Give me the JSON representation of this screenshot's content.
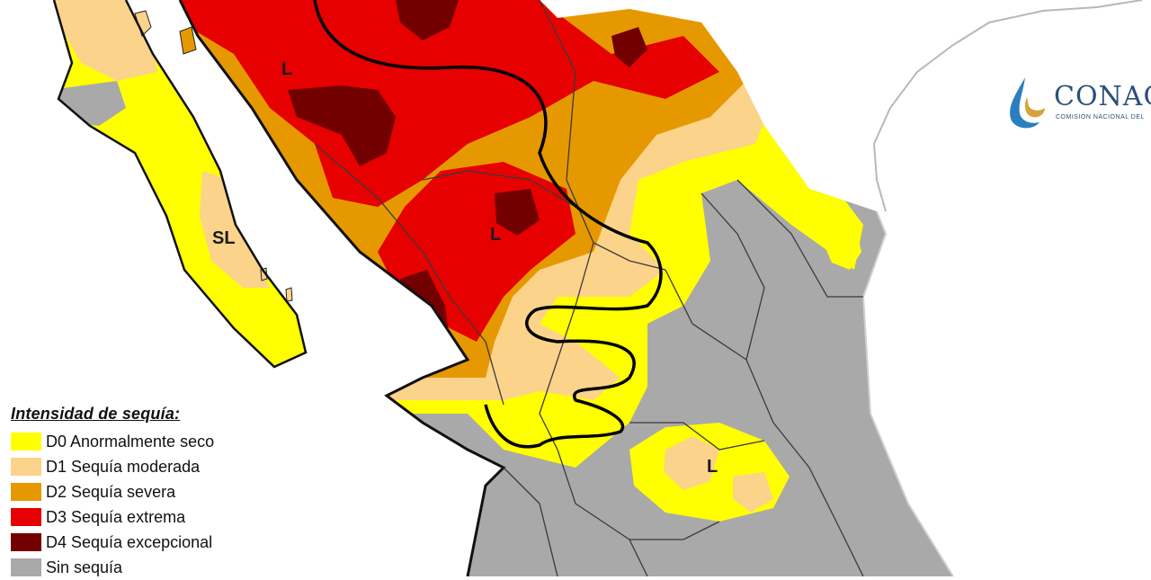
{
  "map": {
    "region_labels": {
      "baja_sur": "SL",
      "sonora_north": "L",
      "chihuahua_central": "L",
      "bajio": "L"
    }
  },
  "legend": {
    "title": "Intensidad de sequía:",
    "items": [
      {
        "label": "D0 Anormalmente seco",
        "color": "#ffff00"
      },
      {
        "label": "D1 Sequía moderada",
        "color": "#fcd38a"
      },
      {
        "label": "D2 Sequía severa",
        "color": "#e69800"
      },
      {
        "label": "D3 Sequía extrema",
        "color": "#e60000"
      },
      {
        "label": "D4 Sequía excepcional",
        "color": "#730000"
      },
      {
        "label": "Sin sequía",
        "color": "#a9a9a9"
      }
    ]
  },
  "logo": {
    "name": "CONAGUA",
    "wordmark_visible": "CONAG",
    "subtitle_visible": "COMISIÓN NACIONAL DEL"
  },
  "colors": {
    "water": "#ffffff",
    "state_border": "#3a3a3a",
    "impact_boundary": "#000000",
    "coastline_usa": "#b8b8b8"
  }
}
